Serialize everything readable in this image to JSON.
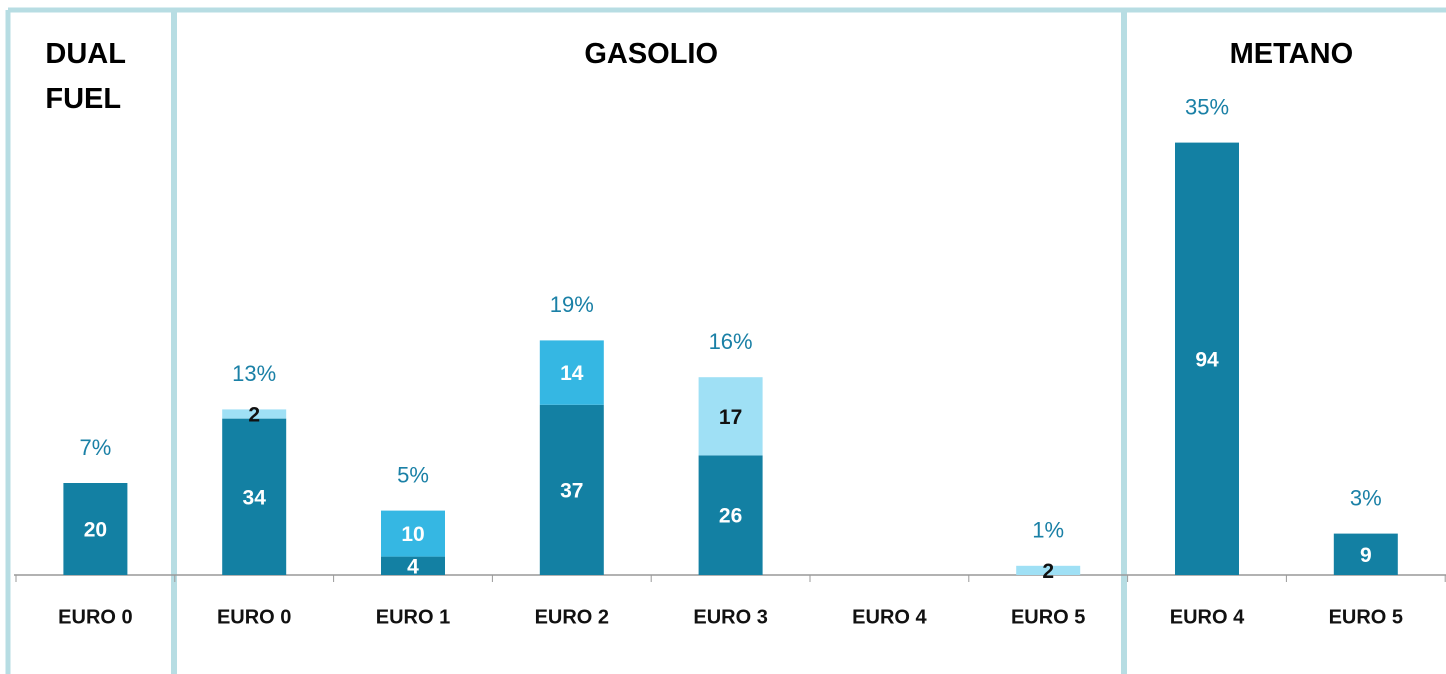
{
  "chart_data": {
    "type": "bar",
    "groups": [
      {
        "name": "DUAL FUEL",
        "categories": [
          "EURO 0"
        ]
      },
      {
        "name": "GASOLIO",
        "categories": [
          "EURO 0",
          "EURO 1",
          "EURO 2",
          "EURO 3",
          "EURO 4",
          "EURO 5"
        ]
      },
      {
        "name": "METANO",
        "categories": [
          "EURO 4",
          "EURO 5"
        ]
      }
    ],
    "series": [
      {
        "color": "#1380a3",
        "values": [
          20,
          34,
          4,
          37,
          26,
          null,
          null,
          94,
          9
        ]
      },
      {
        "color": "#35b7e3",
        "values": [
          null,
          null,
          10,
          14,
          null,
          null,
          null,
          null,
          null
        ]
      },
      {
        "color": "#9fe0f5",
        "values": [
          null,
          2,
          null,
          null,
          17,
          null,
          2,
          null,
          null
        ]
      }
    ],
    "totals": {
      "values": [
        7,
        13,
        5,
        19,
        16,
        null,
        1,
        35,
        3
      ],
      "value_labels": [
        "7%",
        "13%",
        "5%",
        "19%",
        "16%",
        null,
        "1%",
        "35%",
        "3%"
      ],
      "color": "#1a80a6"
    },
    "ylim": [
      0,
      100
    ]
  }
}
